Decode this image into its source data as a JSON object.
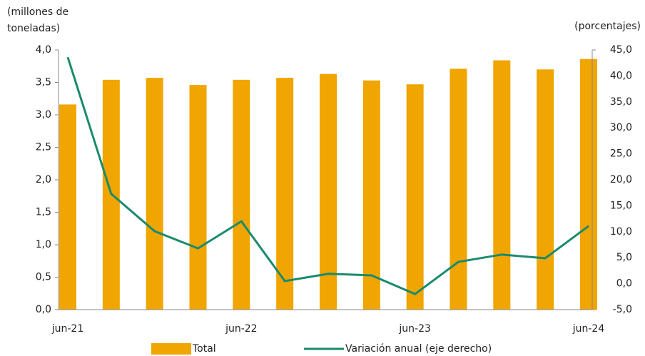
{
  "chart_data": {
    "type": "bar_line",
    "ylabel_lines": [
      "(millones de",
      "toneladas)"
    ],
    "y2label": "(porcentajes)",
    "categories": [
      "jun-21",
      null,
      null,
      null,
      "jun-22",
      null,
      null,
      null,
      "jun-23",
      null,
      null,
      null,
      "jun-24"
    ],
    "series": [
      {
        "name": "Total",
        "type": "bar",
        "color": "#f0a500",
        "values": [
          3.16,
          3.54,
          3.57,
          3.46,
          3.54,
          3.57,
          3.63,
          3.53,
          3.47,
          3.71,
          3.84,
          3.7,
          3.86
        ]
      },
      {
        "name": "Variación anual (eje derecho)",
        "type": "line",
        "axis": "y2",
        "color": "#1a8a6e",
        "values": [
          43.6,
          17.3,
          10.1,
          6.8,
          12.0,
          0.5,
          1.9,
          1.6,
          -2.0,
          4.2,
          5.6,
          4.9,
          11.1
        ]
      }
    ],
    "ylim": [
      0,
      4
    ],
    "yticks": [
      {
        "value": 0,
        "label": "0,0"
      },
      {
        "value": 0.5,
        "label": "0,5"
      },
      {
        "value": 1,
        "label": "1,0"
      },
      {
        "value": 1.5,
        "label": "1,5"
      },
      {
        "value": 2,
        "label": "2,0"
      },
      {
        "value": 2.5,
        "label": "2,5"
      },
      {
        "value": 3,
        "label": "3,0"
      },
      {
        "value": 3.5,
        "label": "3,5"
      },
      {
        "value": 4,
        "label": "4,0"
      }
    ],
    "y2lim": [
      -5,
      45
    ],
    "y2ticks": [
      {
        "value": -5,
        "label": "-5,0"
      },
      {
        "value": 0,
        "label": "0,0"
      },
      {
        "value": 5,
        "label": "5,0"
      },
      {
        "value": 10,
        "label": "10,0"
      },
      {
        "value": 15,
        "label": "15,0"
      },
      {
        "value": 20,
        "label": "20,0"
      },
      {
        "value": 25,
        "label": "25,0"
      },
      {
        "value": 30,
        "label": "30,0"
      },
      {
        "value": 35,
        "label": "35,0"
      },
      {
        "value": 40,
        "label": "40,0"
      },
      {
        "value": 45,
        "label": "45,0"
      }
    ],
    "legend": "bottom"
  }
}
